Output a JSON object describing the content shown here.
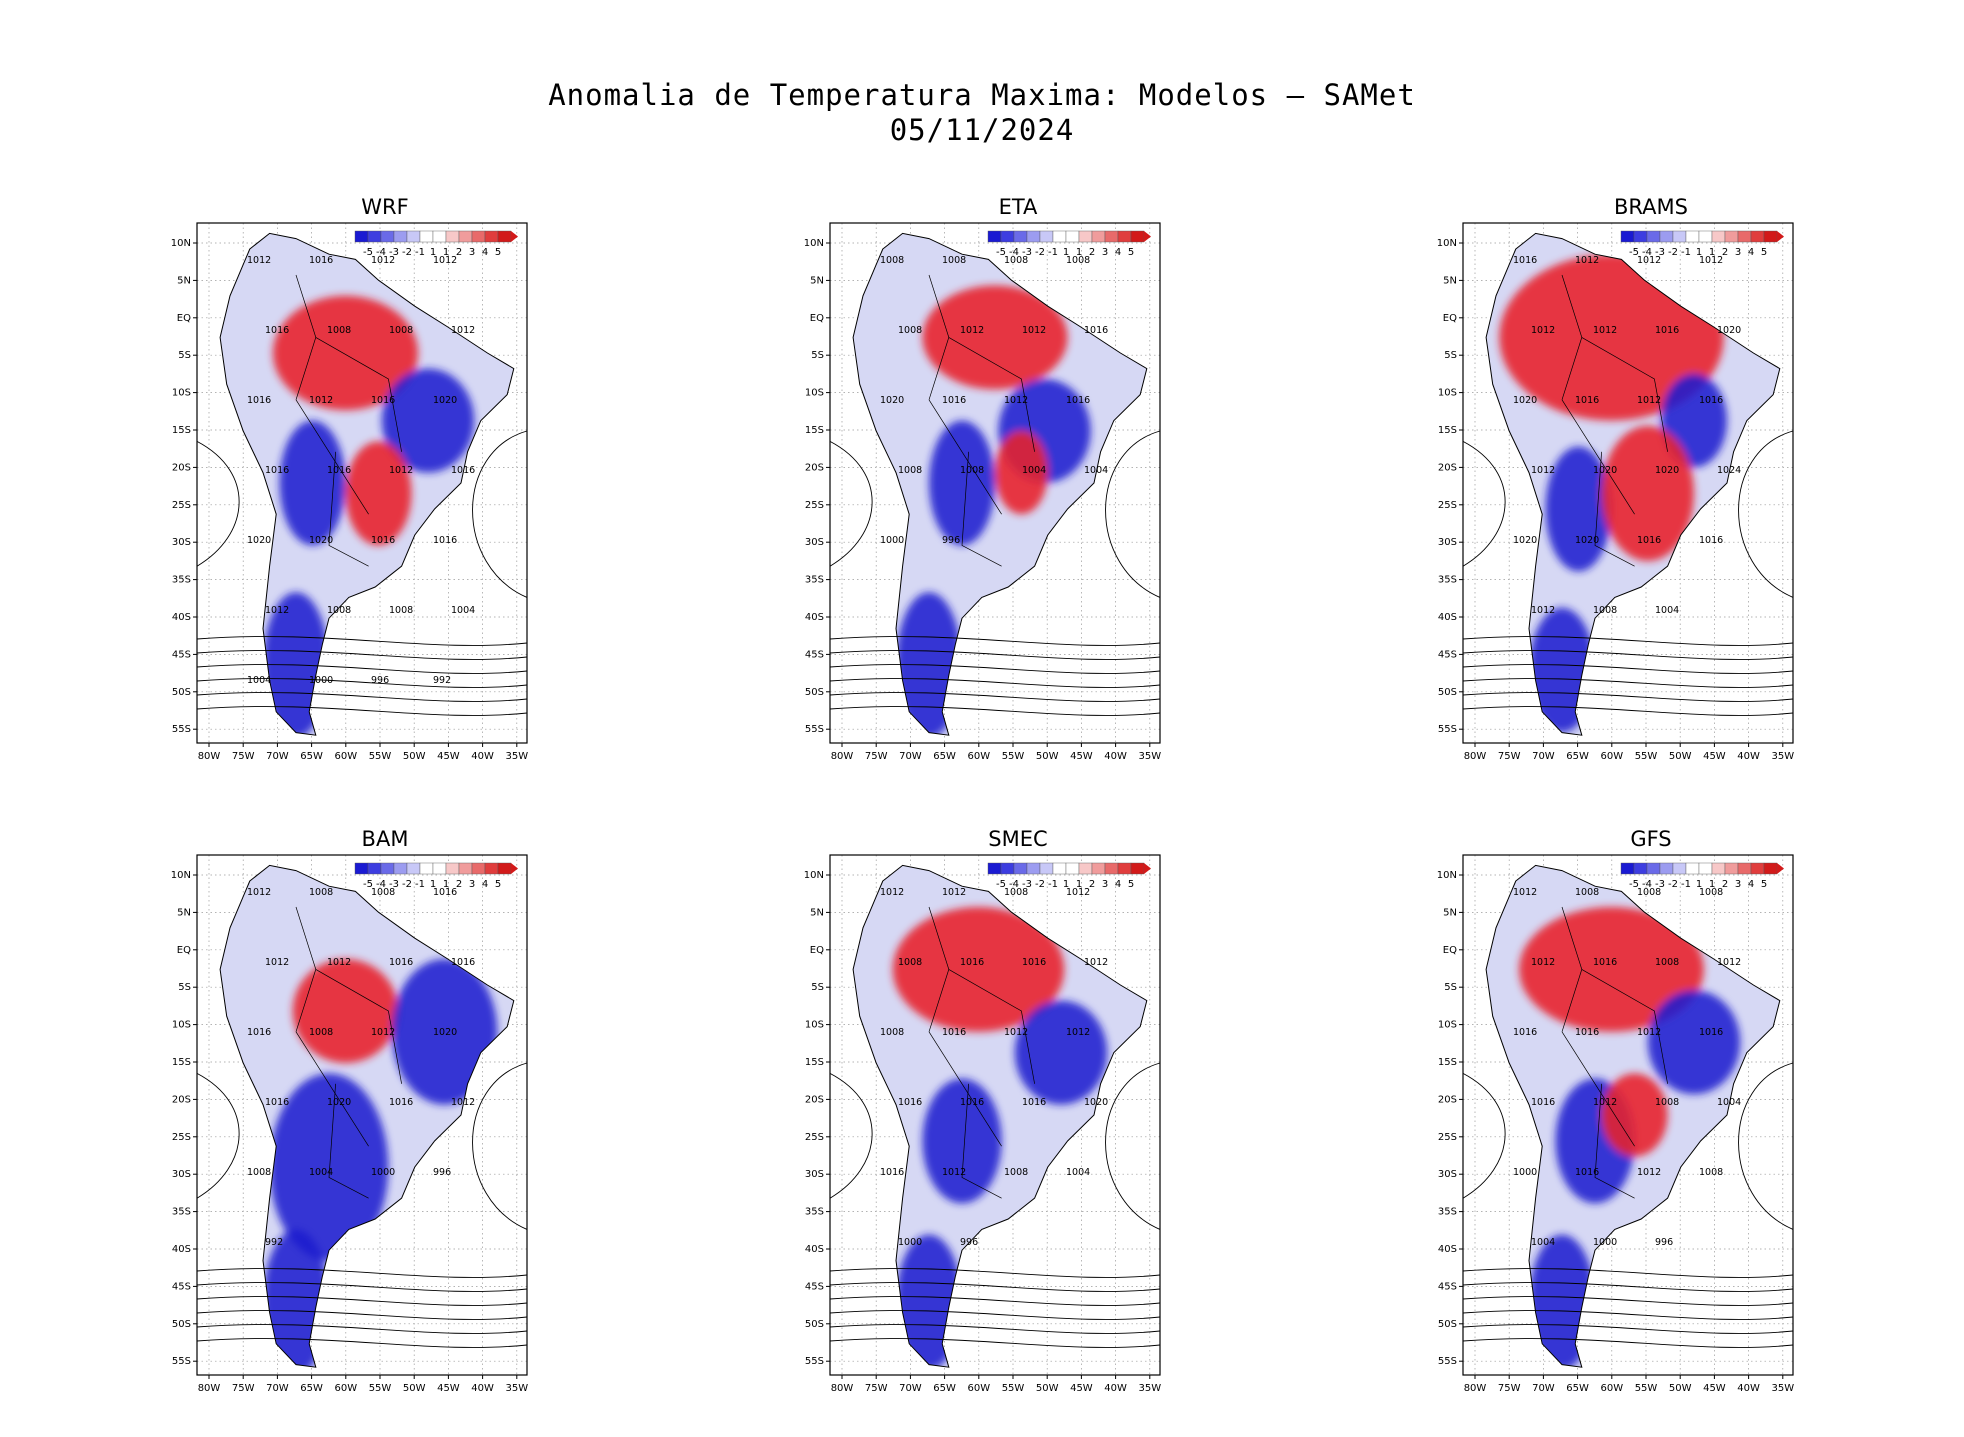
{
  "title": "Anomalia de Temperatura Maxima: Modelos — SAMet",
  "date": "05/11/2024",
  "colors": {
    "warm": "#e8212b",
    "cold": "#1e1ecf",
    "contour": "#000000",
    "grid": "#9a9a9a",
    "background": "#ffffff"
  },
  "colorbar": {
    "labels": [
      "-5",
      "-4",
      "-3",
      "-2",
      "-1",
      "1",
      "1",
      "2",
      "3",
      "4",
      "5"
    ],
    "colors": [
      "#1a1ad2",
      "#3d3de0",
      "#6a6ae8",
      "#9c9cf0",
      "#c8c8f7",
      "#ffffff",
      "#ffffff",
      "#f7c8c8",
      "#f09c9c",
      "#e86a6a",
      "#e03d3d",
      "#d21a1a"
    ]
  },
  "axes": {
    "lat_labels": [
      "10N",
      "5N",
      "EQ",
      "5S",
      "10S",
      "15S",
      "20S",
      "25S",
      "30S",
      "35S",
      "40S",
      "45S",
      "50S",
      "55S"
    ],
    "lon_labels": [
      "80W",
      "75W",
      "70W",
      "65W",
      "60W",
      "55W",
      "50W",
      "45W",
      "40W",
      "35W"
    ]
  },
  "panels": [
    {
      "name": "WRF",
      "labels": [
        "1012",
        "1016",
        "1012",
        "1012",
        "1016",
        "1008",
        "1008",
        "1012",
        "1016",
        "1012",
        "1016",
        "1020",
        "1016",
        "1016",
        "1012",
        "1016",
        "1020",
        "1020",
        "1016",
        "1016",
        "1012",
        "1008",
        "1008",
        "1004",
        "1004",
        "1000",
        "996",
        "992"
      ]
    },
    {
      "name": "ETA",
      "labels": [
        "1008",
        "1008",
        "1008",
        "1008",
        "1008",
        "1012",
        "1012",
        "1016",
        "1020",
        "1016",
        "1012",
        "1016",
        "1008",
        "1008",
        "1004",
        "1004",
        "1000",
        "996"
      ]
    },
    {
      "name": "BRAMS",
      "labels": [
        "1016",
        "1012",
        "1012",
        "1012",
        "1012",
        "1012",
        "1016",
        "1020",
        "1020",
        "1016",
        "1012",
        "1016",
        "1012",
        "1020",
        "1020",
        "1024",
        "1020",
        "1020",
        "1016",
        "1016",
        "1012",
        "1008",
        "1004"
      ]
    },
    {
      "name": "BAM",
      "labels": [
        "1012",
        "1008",
        "1008",
        "1016",
        "1012",
        "1012",
        "1016",
        "1016",
        "1016",
        "1008",
        "1012",
        "1020",
        "1016",
        "1020",
        "1016",
        "1012",
        "1008",
        "1004",
        "1000",
        "996",
        "992"
      ]
    },
    {
      "name": "SMEC",
      "labels": [
        "1012",
        "1012",
        "1008",
        "1012",
        "1008",
        "1016",
        "1016",
        "1012",
        "1008",
        "1016",
        "1012",
        "1012",
        "1016",
        "1016",
        "1016",
        "1020",
        "1016",
        "1012",
        "1008",
        "1004",
        "1000",
        "996"
      ]
    },
    {
      "name": "GFS",
      "labels": [
        "1012",
        "1008",
        "1008",
        "1008",
        "1012",
        "1016",
        "1008",
        "1012",
        "1016",
        "1016",
        "1012",
        "1016",
        "1016",
        "1012",
        "1008",
        "1004",
        "1000",
        "1016",
        "1012",
        "1008",
        "1004",
        "1000",
        "996"
      ]
    }
  ]
}
